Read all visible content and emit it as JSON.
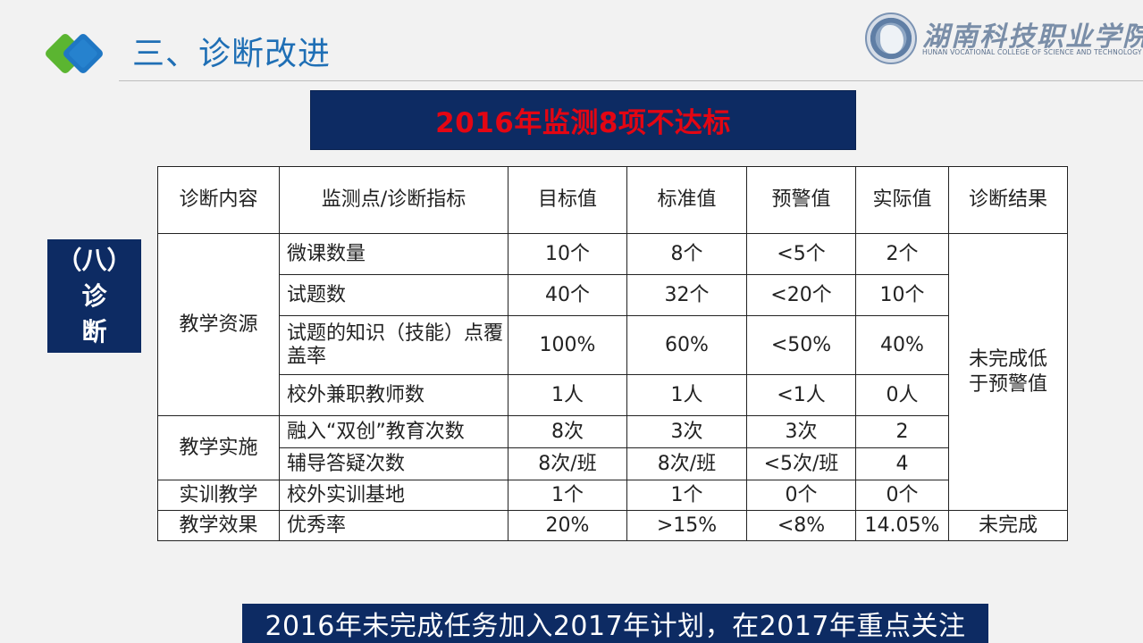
{
  "header": {
    "title": "三、诊断改进",
    "logo_colors": {
      "green": "#5bb531",
      "blue": "#1f77c4"
    }
  },
  "college": {
    "name_cn": "湖南科技职业学院",
    "name_en": "HUNAN VOCATIONAL COLLEGE OF SCIENCE AND TECHNOLOGY"
  },
  "banner": {
    "text": "2016年监测8项不达标"
  },
  "side_label": {
    "lines": [
      "（八）",
      "诊",
      "断"
    ]
  },
  "table": {
    "headers": [
      "诊断内容",
      "监测点/诊断指标",
      "目标值",
      "标准值",
      "预警值",
      "实际值",
      "诊断结果"
    ],
    "groups": [
      {
        "category": "教学资源"
      },
      {
        "category": "教学实施"
      },
      {
        "category": "实训教学"
      },
      {
        "category": "教学效果"
      }
    ],
    "rows": [
      {
        "indicator": "微课数量",
        "target": "10个",
        "standard": "8个",
        "warning": "<5个",
        "actual": "2个"
      },
      {
        "indicator": "试题数",
        "target": "40个",
        "standard": "32个",
        "warning": "<20个",
        "actual": "10个"
      },
      {
        "indicator": "试题的知识（技能）点覆盖率",
        "target": "100%",
        "standard": "60%",
        "warning": "<50%",
        "actual": "40%"
      },
      {
        "indicator": "校外兼职教师数",
        "target": "1人",
        "standard": "1人",
        "warning": "<1人",
        "actual": "0人"
      },
      {
        "indicator": "融入“双创”教育次数",
        "target": "8次",
        "standard": "3次",
        "warning": "3次",
        "actual": "2"
      },
      {
        "indicator": "辅导答疑次数",
        "target": "8次/班",
        "standard": "8次/班",
        "warning": "<5次/班",
        "actual": "4"
      },
      {
        "indicator": "校外实训基地",
        "target": "1个",
        "standard": "1个",
        "warning": "0个",
        "actual": "0个"
      },
      {
        "indicator": "优秀率",
        "target": "20%",
        "standard": ">15%",
        "warning": "<8%",
        "actual": "14.05%"
      }
    ],
    "results": {
      "merged": "未完成低于预警值",
      "last": "未完成"
    }
  },
  "footer": {
    "text": "2016年未完成任务加入2017年计划，在2017年重点关注"
  },
  "colors": {
    "navy": "#0d2b63",
    "title_blue": "#1f6fb5",
    "banner_red": "#e30613"
  }
}
